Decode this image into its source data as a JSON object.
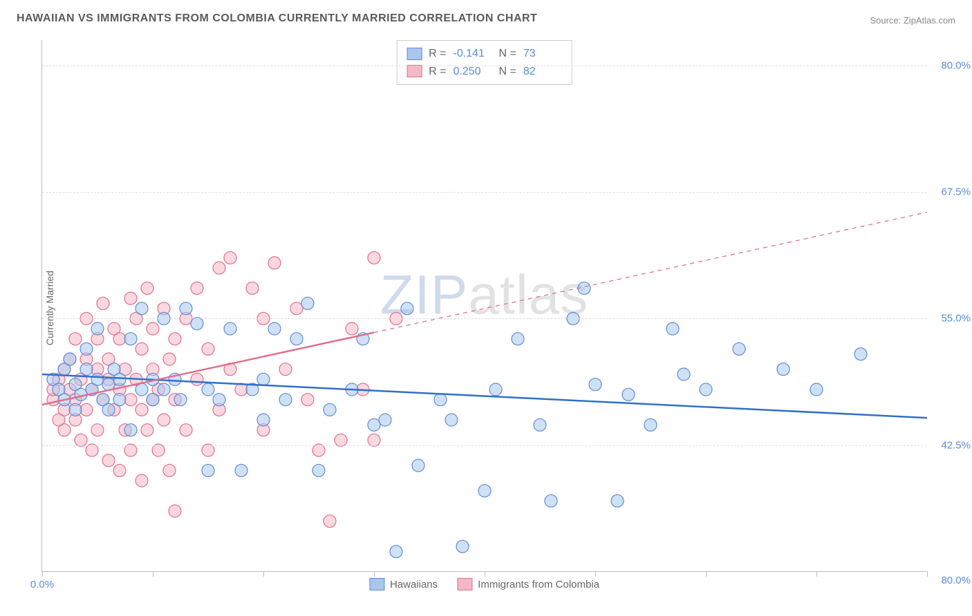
{
  "title": "HAWAIIAN VS IMMIGRANTS FROM COLOMBIA CURRENTLY MARRIED CORRELATION CHART",
  "source": "Source: ZipAtlas.com",
  "yaxis_label": "Currently Married",
  "watermark_part1": "ZIP",
  "watermark_part2": "atlas",
  "chart": {
    "type": "scatter",
    "xlim": [
      0,
      80
    ],
    "ylim": [
      30,
      82.5
    ],
    "yticks": [
      42.5,
      55.0,
      67.5,
      80.0
    ],
    "ytick_labels": [
      "42.5%",
      "55.0%",
      "67.5%",
      "80.0%"
    ],
    "xticks": [
      0,
      10,
      20,
      30,
      40,
      50,
      60,
      70,
      80
    ],
    "xtick_label_left": "0.0%",
    "xtick_label_right": "80.0%",
    "background_color": "#ffffff",
    "grid_color": "#dddddd",
    "axis_color": "#bbbbbb",
    "marker_radius": 9,
    "marker_opacity": 0.55,
    "line_width_solid": 2.5,
    "line_width_dashed": 1.3,
    "series": [
      {
        "name": "Hawaiians",
        "fill_color": "#a9c6ec",
        "stroke_color": "#5b8dd6",
        "line_color": "#2f70c7",
        "R_label": "R =",
        "R_value": "-0.141",
        "N_label": "N =",
        "N_value": "73",
        "trend": {
          "x1": 0,
          "y1": 49.5,
          "x2": 80,
          "y2": 45.2,
          "solid_until_x": 80
        },
        "points": [
          [
            1,
            49
          ],
          [
            1.5,
            48
          ],
          [
            2,
            50
          ],
          [
            2,
            47
          ],
          [
            2.5,
            51
          ],
          [
            3,
            48.5
          ],
          [
            3,
            46
          ],
          [
            3.5,
            47.5
          ],
          [
            4,
            50
          ],
          [
            4,
            52
          ],
          [
            4.5,
            48
          ],
          [
            5,
            49
          ],
          [
            5,
            54
          ],
          [
            5.5,
            47
          ],
          [
            6,
            48.5
          ],
          [
            6,
            46
          ],
          [
            6.5,
            50
          ],
          [
            7,
            49
          ],
          [
            7,
            47
          ],
          [
            8,
            53
          ],
          [
            8,
            44
          ],
          [
            9,
            48
          ],
          [
            9,
            56
          ],
          [
            10,
            49
          ],
          [
            10,
            47
          ],
          [
            11,
            55
          ],
          [
            11,
            48
          ],
          [
            12,
            49
          ],
          [
            12.5,
            47
          ],
          [
            13,
            56
          ],
          [
            14,
            54.5
          ],
          [
            15,
            48
          ],
          [
            15,
            40
          ],
          [
            16,
            47
          ],
          [
            17,
            54
          ],
          [
            18,
            40
          ],
          [
            19,
            48
          ],
          [
            20,
            49
          ],
          [
            20,
            45
          ],
          [
            21,
            54
          ],
          [
            22,
            47
          ],
          [
            23,
            53
          ],
          [
            24,
            56.5
          ],
          [
            25,
            40
          ],
          [
            26,
            46
          ],
          [
            28,
            48
          ],
          [
            29,
            53
          ],
          [
            30,
            44.5
          ],
          [
            31,
            45
          ],
          [
            32,
            32
          ],
          [
            33,
            56
          ],
          [
            34,
            40.5
          ],
          [
            36,
            47
          ],
          [
            37,
            45
          ],
          [
            38,
            32.5
          ],
          [
            40,
            38
          ],
          [
            41,
            48
          ],
          [
            43,
            53
          ],
          [
            45,
            44.5
          ],
          [
            46,
            37
          ],
          [
            48,
            55
          ],
          [
            49,
            58
          ],
          [
            50,
            48.5
          ],
          [
            52,
            37
          ],
          [
            53,
            47.5
          ],
          [
            55,
            44.5
          ],
          [
            57,
            54
          ],
          [
            58,
            49.5
          ],
          [
            60,
            48
          ],
          [
            63,
            52
          ],
          [
            67,
            50
          ],
          [
            70,
            48
          ],
          [
            74,
            51.5
          ]
        ]
      },
      {
        "name": "Immigrants from Colombia",
        "fill_color": "#f4b8c6",
        "stroke_color": "#e16e8c",
        "line_color": "#e16e8c",
        "R_label": "R =",
        "R_value": "0.250",
        "N_label": "N =",
        "N_value": "82",
        "trend": {
          "x1": 0,
          "y1": 46.5,
          "x2": 80,
          "y2": 65.5,
          "solid_until_x": 30
        },
        "points": [
          [
            1,
            47
          ],
          [
            1,
            48
          ],
          [
            1.5,
            49
          ],
          [
            1.5,
            45
          ],
          [
            2,
            46
          ],
          [
            2,
            50
          ],
          [
            2,
            44
          ],
          [
            2.5,
            48
          ],
          [
            2.5,
            51
          ],
          [
            3,
            47
          ],
          [
            3,
            53
          ],
          [
            3,
            45
          ],
          [
            3.5,
            49
          ],
          [
            3.5,
            43
          ],
          [
            4,
            51
          ],
          [
            4,
            46
          ],
          [
            4,
            55
          ],
          [
            4.5,
            48
          ],
          [
            4.5,
            42
          ],
          [
            5,
            50
          ],
          [
            5,
            53
          ],
          [
            5,
            44
          ],
          [
            5.5,
            47
          ],
          [
            5.5,
            56.5
          ],
          [
            6,
            49
          ],
          [
            6,
            51
          ],
          [
            6,
            41
          ],
          [
            6.5,
            54
          ],
          [
            6.5,
            46
          ],
          [
            7,
            48
          ],
          [
            7,
            53
          ],
          [
            7,
            40
          ],
          [
            7.5,
            50
          ],
          [
            7.5,
            44
          ],
          [
            8,
            57
          ],
          [
            8,
            47
          ],
          [
            8,
            42
          ],
          [
            8.5,
            55
          ],
          [
            8.5,
            49
          ],
          [
            9,
            46
          ],
          [
            9,
            52
          ],
          [
            9,
            39
          ],
          [
            9.5,
            58
          ],
          [
            9.5,
            44
          ],
          [
            10,
            50
          ],
          [
            10,
            47
          ],
          [
            10,
            54
          ],
          [
            10.5,
            42
          ],
          [
            10.5,
            48
          ],
          [
            11,
            56
          ],
          [
            11,
            45
          ],
          [
            11.5,
            51
          ],
          [
            11.5,
            40
          ],
          [
            12,
            53
          ],
          [
            12,
            47
          ],
          [
            12,
            36
          ],
          [
            13,
            55
          ],
          [
            13,
            44
          ],
          [
            14,
            49
          ],
          [
            14,
            58
          ],
          [
            15,
            42
          ],
          [
            15,
            52
          ],
          [
            16,
            60
          ],
          [
            16,
            46
          ],
          [
            17,
            61
          ],
          [
            17,
            50
          ],
          [
            18,
            48
          ],
          [
            19,
            58
          ],
          [
            20,
            44
          ],
          [
            20,
            55
          ],
          [
            21,
            60.5
          ],
          [
            22,
            50
          ],
          [
            23,
            56
          ],
          [
            24,
            47
          ],
          [
            25,
            42
          ],
          [
            26,
            35
          ],
          [
            27,
            43
          ],
          [
            28,
            54
          ],
          [
            29,
            48
          ],
          [
            30,
            61
          ],
          [
            30,
            43
          ],
          [
            32,
            55
          ]
        ]
      }
    ]
  }
}
